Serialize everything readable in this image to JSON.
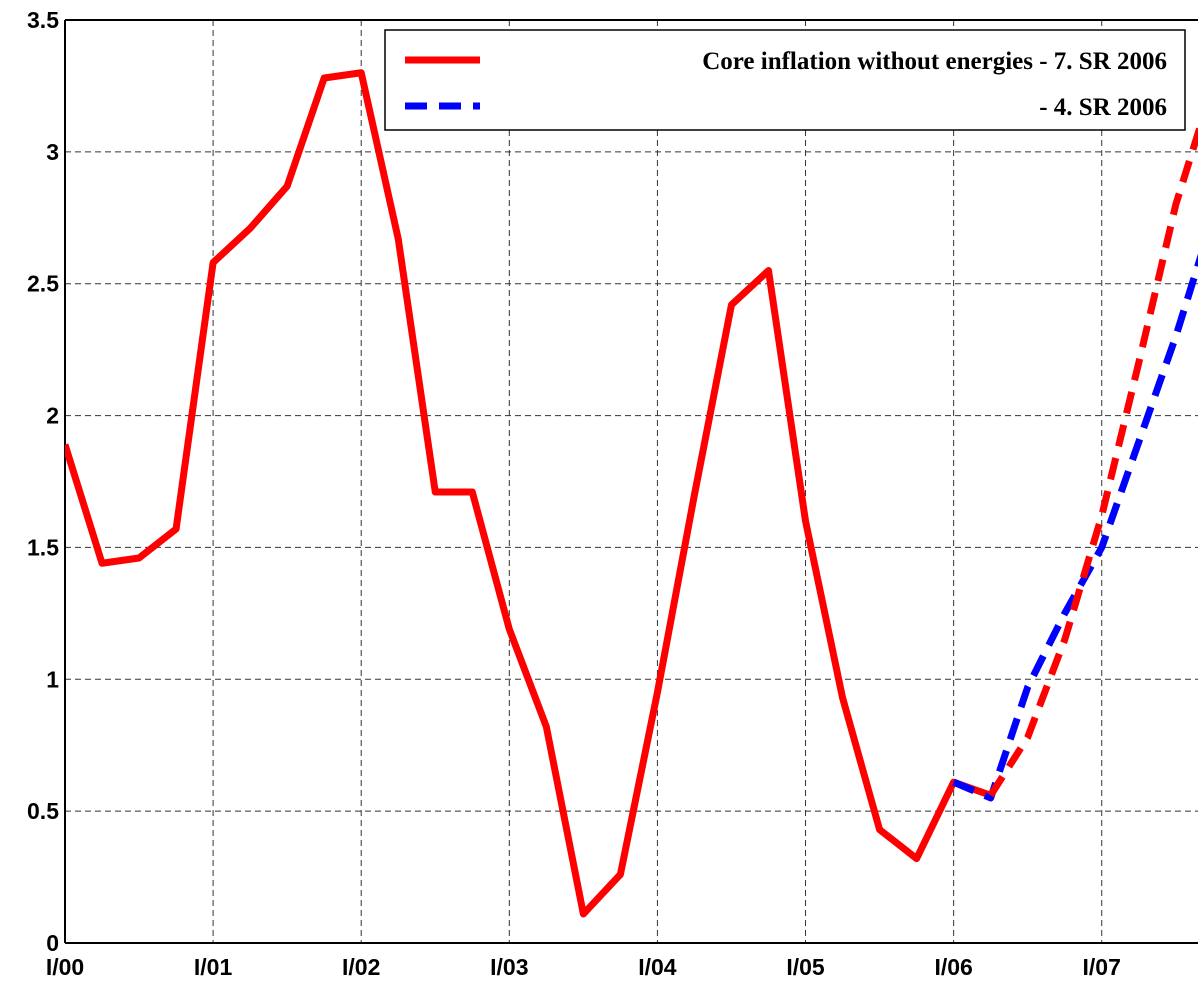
{
  "chart_data": {
    "type": "line",
    "x": [
      0,
      1,
      2,
      3,
      4,
      5,
      6,
      7,
      8,
      9,
      10,
      11,
      12,
      13,
      14,
      15,
      16,
      17,
      18,
      19,
      20,
      21,
      22,
      23,
      24,
      25,
      26,
      27,
      28,
      29,
      30,
      31
    ],
    "xlim": [
      0,
      30.6
    ],
    "xticks": [
      {
        "value": 0,
        "label": "I/00"
      },
      {
        "value": 4,
        "label": "I/01"
      },
      {
        "value": 8,
        "label": "I/02"
      },
      {
        "value": 12,
        "label": "I/03"
      },
      {
        "value": 16,
        "label": "I/04"
      },
      {
        "value": 20,
        "label": "I/05"
      },
      {
        "value": 24,
        "label": "I/06"
      },
      {
        "value": 28,
        "label": "I/07"
      }
    ],
    "ylim": [
      0,
      3.5
    ],
    "yticks": [
      0,
      0.5,
      1,
      1.5,
      2,
      2.5,
      3,
      3.5
    ],
    "grid": true,
    "legend": "upper right",
    "series": [
      {
        "name": "Core inflation without energies - 7. SR 2006",
        "color": "#ff0000",
        "dash": false,
        "values": [
          1.89,
          1.44,
          1.46,
          1.57,
          2.58,
          2.71,
          2.87,
          3.28,
          3.3,
          2.67,
          1.71,
          1.71,
          1.19,
          0.82,
          0.11,
          0.26,
          0.95,
          1.7,
          2.42,
          2.55,
          1.6,
          0.93,
          0.43,
          0.32,
          0.61,
          0.56,
          null,
          null,
          null,
          null,
          null,
          null
        ]
      },
      {
        "name": "- 4. SR 2006",
        "color": "#0000ff",
        "dash": true,
        "values": [
          null,
          null,
          null,
          null,
          null,
          null,
          null,
          null,
          null,
          null,
          null,
          null,
          null,
          null,
          null,
          null,
          null,
          null,
          null,
          null,
          null,
          null,
          null,
          null,
          0.61,
          0.55,
          0.97,
          1.25,
          1.5,
          1.9,
          2.3,
          2.75
        ]
      },
      {
        "color": "#ff0000",
        "dash": true,
        "values": [
          null,
          null,
          null,
          null,
          null,
          null,
          null,
          null,
          null,
          null,
          null,
          null,
          null,
          null,
          null,
          null,
          null,
          null,
          null,
          null,
          null,
          null,
          null,
          null,
          null,
          0.56,
          0.78,
          1.15,
          1.62,
          2.2,
          2.8,
          3.25
        ]
      }
    ]
  }
}
